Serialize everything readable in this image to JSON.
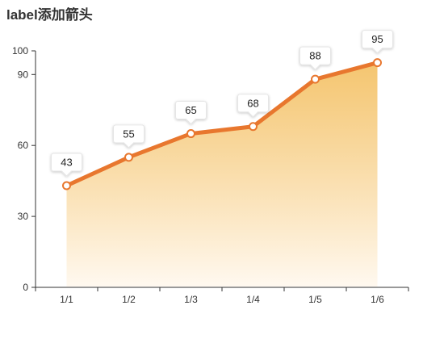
{
  "chart_data": {
    "type": "line",
    "title": "label添加箭头",
    "categories": [
      "1/1",
      "1/2",
      "1/3",
      "1/4",
      "1/5",
      "1/6"
    ],
    "values": [
      43,
      55,
      65,
      68,
      88,
      95
    ],
    "ylim": [
      0,
      100
    ],
    "y_ticks": [
      0,
      30,
      60,
      90,
      100
    ],
    "area_fill": true,
    "data_labels": "callout-boxes-with-arrow",
    "grid": false,
    "colors": {
      "line": "#e8772e",
      "area_top": "#f2b74c",
      "area_bottom": "#fff8ee",
      "point_fill": "#ffffff",
      "axis": "#333333"
    }
  }
}
